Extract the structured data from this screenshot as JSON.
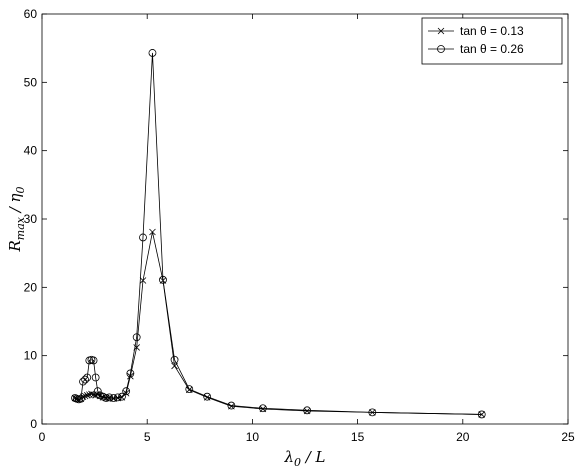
{
  "chart_data": {
    "type": "line",
    "xlabel": [
      "λ",
      "0",
      " / L"
    ],
    "ylabel": [
      "R",
      "max",
      " / η",
      "0"
    ],
    "x": [
      1.57,
      1.65,
      1.75,
      1.85,
      1.95,
      2.05,
      2.15,
      2.25,
      2.35,
      2.45,
      2.55,
      2.65,
      2.75,
      2.9,
      3.05,
      3.2,
      3.4,
      3.6,
      3.8,
      4.0,
      4.2,
      4.5,
      4.8,
      5.25,
      5.75,
      6.3,
      7.0,
      7.85,
      9.0,
      10.5,
      12.6,
      15.7,
      20.9
    ],
    "series": [
      {
        "name": "tan θ = 0.13",
        "color": "#000000",
        "marker": "x",
        "values": [
          3.8,
          3.7,
          3.6,
          3.7,
          4.0,
          4.1,
          4.2,
          4.3,
          4.4,
          4.3,
          4.2,
          4.3,
          4.1,
          3.9,
          3.8,
          3.8,
          3.7,
          3.8,
          3.9,
          4.5,
          7.0,
          11.2,
          21.0,
          28.1,
          21.0,
          8.5,
          5.0,
          3.9,
          2.6,
          2.2,
          1.9,
          1.7,
          1.4
        ]
      },
      {
        "name": "tan θ = 0.26",
        "color": "#000000",
        "marker": "o",
        "values": [
          3.8,
          3.7,
          3.6,
          3.7,
          6.2,
          6.5,
          6.8,
          9.3,
          9.4,
          9.3,
          6.8,
          4.8,
          4.2,
          4.0,
          3.8,
          3.9,
          3.8,
          3.9,
          4.0,
          4.8,
          7.4,
          12.7,
          27.3,
          54.3,
          21.1,
          9.4,
          5.1,
          4.0,
          2.7,
          2.3,
          2.0,
          1.7,
          1.4
        ]
      }
    ],
    "xlim": [
      0,
      25
    ],
    "xticks": [
      0,
      5,
      10,
      15,
      20,
      25
    ],
    "ylim": [
      0,
      60
    ],
    "yticks": [
      0,
      10,
      20,
      30,
      40,
      50,
      60
    ],
    "grid": false,
    "legend": "top-right"
  }
}
